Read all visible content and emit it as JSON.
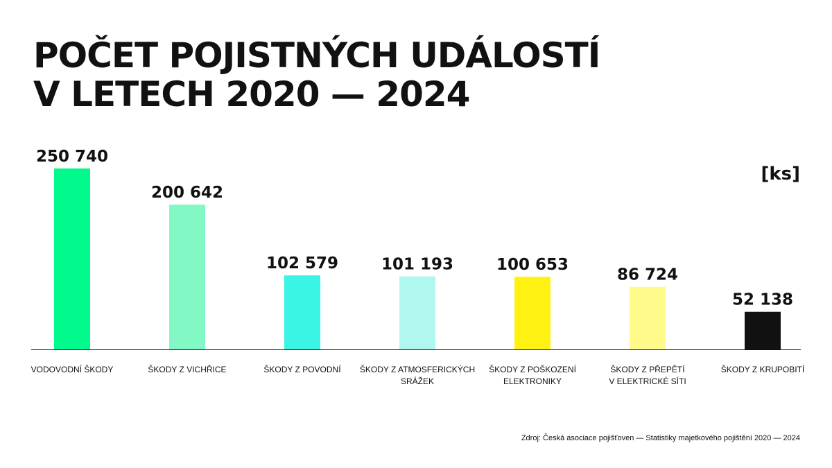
{
  "title_line1": "POČET POJISTNÝCH UDÁLOSTÍ",
  "title_line2": "V LETECH 2020 — 2024",
  "unit_label": "[ks]",
  "source": "Zdroj: Česká asociace pojišťoven — Statistiky majetkového pojištění 2020 — 2024",
  "chart_data": {
    "type": "bar",
    "categories": [
      [
        "VODOVODNÍ ŠKODY"
      ],
      [
        "ŠKODY Z VICHŘICE"
      ],
      [
        "ŠKODY Z POVODNÍ"
      ],
      [
        "ŠKODY Z ATMOSFERICKÝCH",
        "SRÁŽEK"
      ],
      [
        "ŠKODY Z POŠKOZENÍ",
        "ELEKTRONIKY"
      ],
      [
        "ŠKODY Z PŘEPĚTÍ",
        "V ELEKTRICKÉ SÍTI"
      ],
      [
        "ŠKODY Z KRUPOBITÍ"
      ]
    ],
    "values": [
      250740,
      200642,
      102579,
      101193,
      100653,
      86724,
      52138
    ],
    "value_labels": [
      "250 740",
      "200 642",
      "102 579",
      "101 193",
      "100 653",
      "86 724",
      "52 138"
    ],
    "colors": [
      "#00FA8C",
      "#82F8C4",
      "#3AF5E4",
      "#B0F7EF",
      "#FFF212",
      "#FFFA8A",
      "#111111"
    ],
    "ylim": [
      0,
      250740
    ],
    "grid": false,
    "legend": "none"
  }
}
